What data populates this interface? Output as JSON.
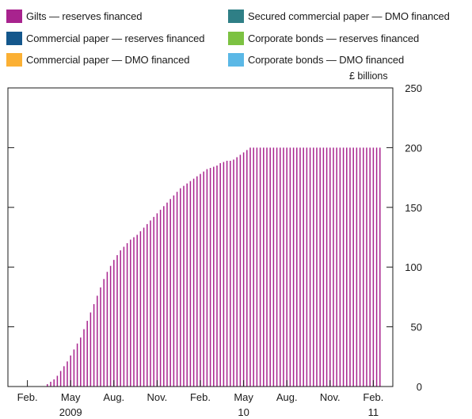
{
  "chart_data": {
    "type": "bar",
    "title": "",
    "unit_label": "£ billions",
    "series": [
      {
        "name": "Gilts — reserves financed",
        "color": "#a8238e"
      },
      {
        "name": "Secured commercial paper — DMO financed",
        "color": "#2f7f86"
      },
      {
        "name": "Commercial paper — reserves financed",
        "color": "#14578c"
      },
      {
        "name": "Corporate bonds — reserves financed",
        "color": "#7cc242"
      },
      {
        "name": "Commercial paper — DMO financed",
        "color": "#fbb034"
      },
      {
        "name": "Corporate bonds — DMO financed",
        "color": "#5bb8e6"
      }
    ],
    "x_ticks": [
      {
        "label": "Feb.",
        "week": 3
      },
      {
        "label": "May",
        "week": 16
      },
      {
        "label": "Aug.",
        "week": 29
      },
      {
        "label": "Nov.",
        "week": 42
      },
      {
        "label": "Feb.",
        "week": 55
      },
      {
        "label": "May",
        "week": 68
      },
      {
        "label": "Aug.",
        "week": 81
      },
      {
        "label": "Nov.",
        "week": 94
      },
      {
        "label": "Feb.",
        "week": 107
      }
    ],
    "year_labels": [
      {
        "label": "2009",
        "week": 16
      },
      {
        "label": "10",
        "week": 68
      },
      {
        "label": "11",
        "week": 107
      }
    ],
    "y_ticks": [
      0,
      50,
      100,
      150,
      200,
      250
    ],
    "ylim": [
      0,
      250
    ],
    "week_count": 110,
    "gilts_weekly_values": [
      0,
      0,
      0,
      0,
      0,
      0,
      0,
      0,
      0,
      2,
      4,
      6,
      9,
      13,
      17,
      21,
      26,
      31,
      36,
      41,
      48,
      55,
      62,
      69,
      76,
      83,
      90,
      96,
      101,
      106,
      110,
      114,
      117,
      120,
      123,
      125,
      127,
      130,
      133,
      136,
      139,
      142,
      145,
      148,
      151,
      154,
      157,
      160,
      163,
      166,
      168,
      170,
      172,
      174,
      176,
      178,
      180,
      182,
      183,
      184,
      185,
      187,
      188,
      189,
      189,
      190,
      192,
      194,
      196,
      198,
      200,
      200,
      200,
      200,
      200,
      200,
      200,
      200,
      200,
      200,
      200,
      200,
      200,
      200,
      200,
      200,
      200,
      200,
      200,
      200,
      200,
      200,
      200,
      200,
      200,
      200,
      200,
      200,
      200,
      200,
      200,
      200,
      200,
      200,
      200,
      200,
      200,
      200,
      200,
      200
    ]
  }
}
